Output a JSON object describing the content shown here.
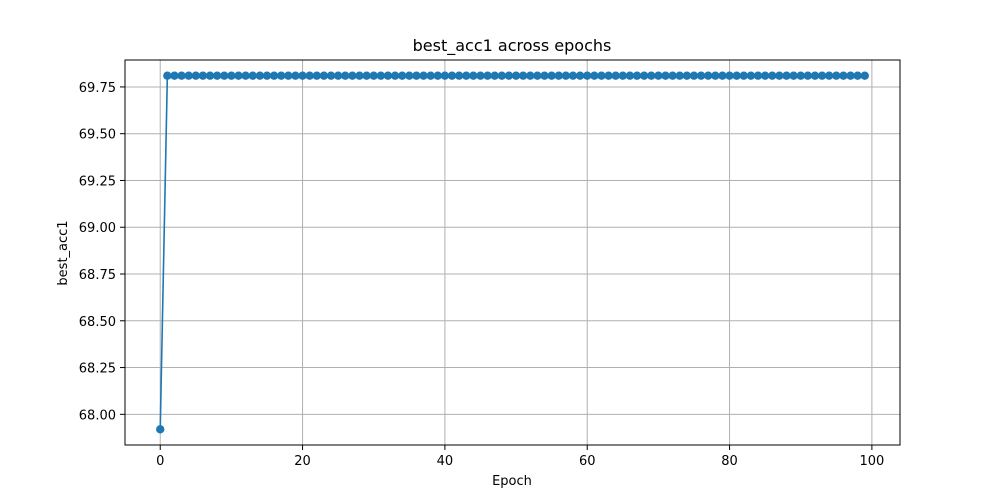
{
  "chart_data": {
    "type": "line",
    "title": "best_acc1 across epochs",
    "xlabel": "Epoch",
    "ylabel": "best_acc1",
    "xlim": [
      -4.95,
      103.95
    ],
    "ylim": [
      67.836,
      69.894
    ],
    "xticks": [
      0,
      20,
      40,
      60,
      80,
      100
    ],
    "xtick_labels": [
      "0",
      "20",
      "40",
      "60",
      "80",
      "100"
    ],
    "yticks": [
      68.0,
      68.25,
      68.5,
      68.75,
      69.0,
      69.25,
      69.5,
      69.75
    ],
    "ytick_labels": [
      "68.00",
      "68.25",
      "68.50",
      "68.75",
      "69.00",
      "69.25",
      "69.50",
      "69.75"
    ],
    "grid": true,
    "marker": "circle",
    "color": "#1f77b4",
    "series": [
      {
        "x_start": 0,
        "x_end": 99,
        "values": [
          67.92,
          69.81,
          69.81,
          69.81,
          69.81,
          69.81,
          69.81,
          69.81,
          69.81,
          69.81,
          69.81,
          69.81,
          69.81,
          69.81,
          69.81,
          69.81,
          69.81,
          69.81,
          69.81,
          69.81,
          69.81,
          69.81,
          69.81,
          69.81,
          69.81,
          69.81,
          69.81,
          69.81,
          69.81,
          69.81,
          69.81,
          69.81,
          69.81,
          69.81,
          69.81,
          69.81,
          69.81,
          69.81,
          69.81,
          69.81,
          69.81,
          69.81,
          69.81,
          69.81,
          69.81,
          69.81,
          69.81,
          69.81,
          69.81,
          69.81,
          69.81,
          69.81,
          69.81,
          69.81,
          69.81,
          69.81,
          69.81,
          69.81,
          69.81,
          69.81,
          69.81,
          69.81,
          69.81,
          69.81,
          69.81,
          69.81,
          69.81,
          69.81,
          69.81,
          69.81,
          69.81,
          69.81,
          69.81,
          69.81,
          69.81,
          69.81,
          69.81,
          69.81,
          69.81,
          69.81,
          69.81,
          69.81,
          69.81,
          69.81,
          69.81,
          69.81,
          69.81,
          69.81,
          69.81,
          69.81,
          69.81,
          69.81,
          69.81,
          69.81,
          69.81,
          69.81,
          69.81,
          69.81,
          69.81,
          69.81
        ]
      }
    ]
  }
}
